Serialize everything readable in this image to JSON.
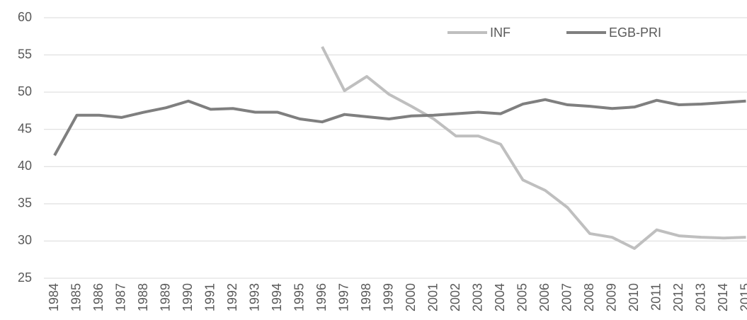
{
  "chart_data": {
    "type": "line",
    "categories": [
      "1984",
      "1985",
      "1986",
      "1987",
      "1988",
      "1989",
      "1990",
      "1991",
      "1992",
      "1993",
      "1994",
      "1995",
      "1996",
      "1997",
      "1998",
      "1999",
      "2000",
      "2001",
      "2002",
      "2003",
      "2004",
      "2005",
      "2006",
      "2007",
      "2008",
      "2009",
      "2010",
      "2011",
      "2012",
      "2013",
      "2014",
      "2015"
    ],
    "series": [
      {
        "name": "INF",
        "color": "#bfbfbf",
        "values": [
          null,
          null,
          null,
          null,
          null,
          null,
          null,
          null,
          null,
          null,
          null,
          null,
          56.1,
          50.2,
          52.1,
          49.7,
          48.1,
          46.4,
          44.1,
          44.1,
          43.0,
          38.2,
          36.8,
          34.5,
          31.0,
          30.5,
          29.0,
          31.5,
          30.7,
          30.5,
          30.4,
          30.5
        ]
      },
      {
        "name": "EGB-PRI",
        "color": "#7f7f7f",
        "values": [
          41.5,
          46.9,
          46.9,
          46.6,
          47.3,
          47.9,
          48.8,
          47.7,
          47.8,
          47.3,
          47.3,
          46.4,
          46.0,
          47.0,
          46.7,
          46.4,
          46.8,
          46.9,
          47.1,
          47.3,
          47.1,
          48.4,
          49.0,
          48.3,
          48.1,
          47.8,
          48.0,
          48.9,
          48.3,
          48.4,
          48.6,
          48.8
        ]
      }
    ],
    "ylim": [
      25,
      60
    ],
    "yticks": [
      25,
      30,
      35,
      40,
      45,
      50,
      55,
      60
    ],
    "grid": true,
    "legend": "top-right"
  }
}
